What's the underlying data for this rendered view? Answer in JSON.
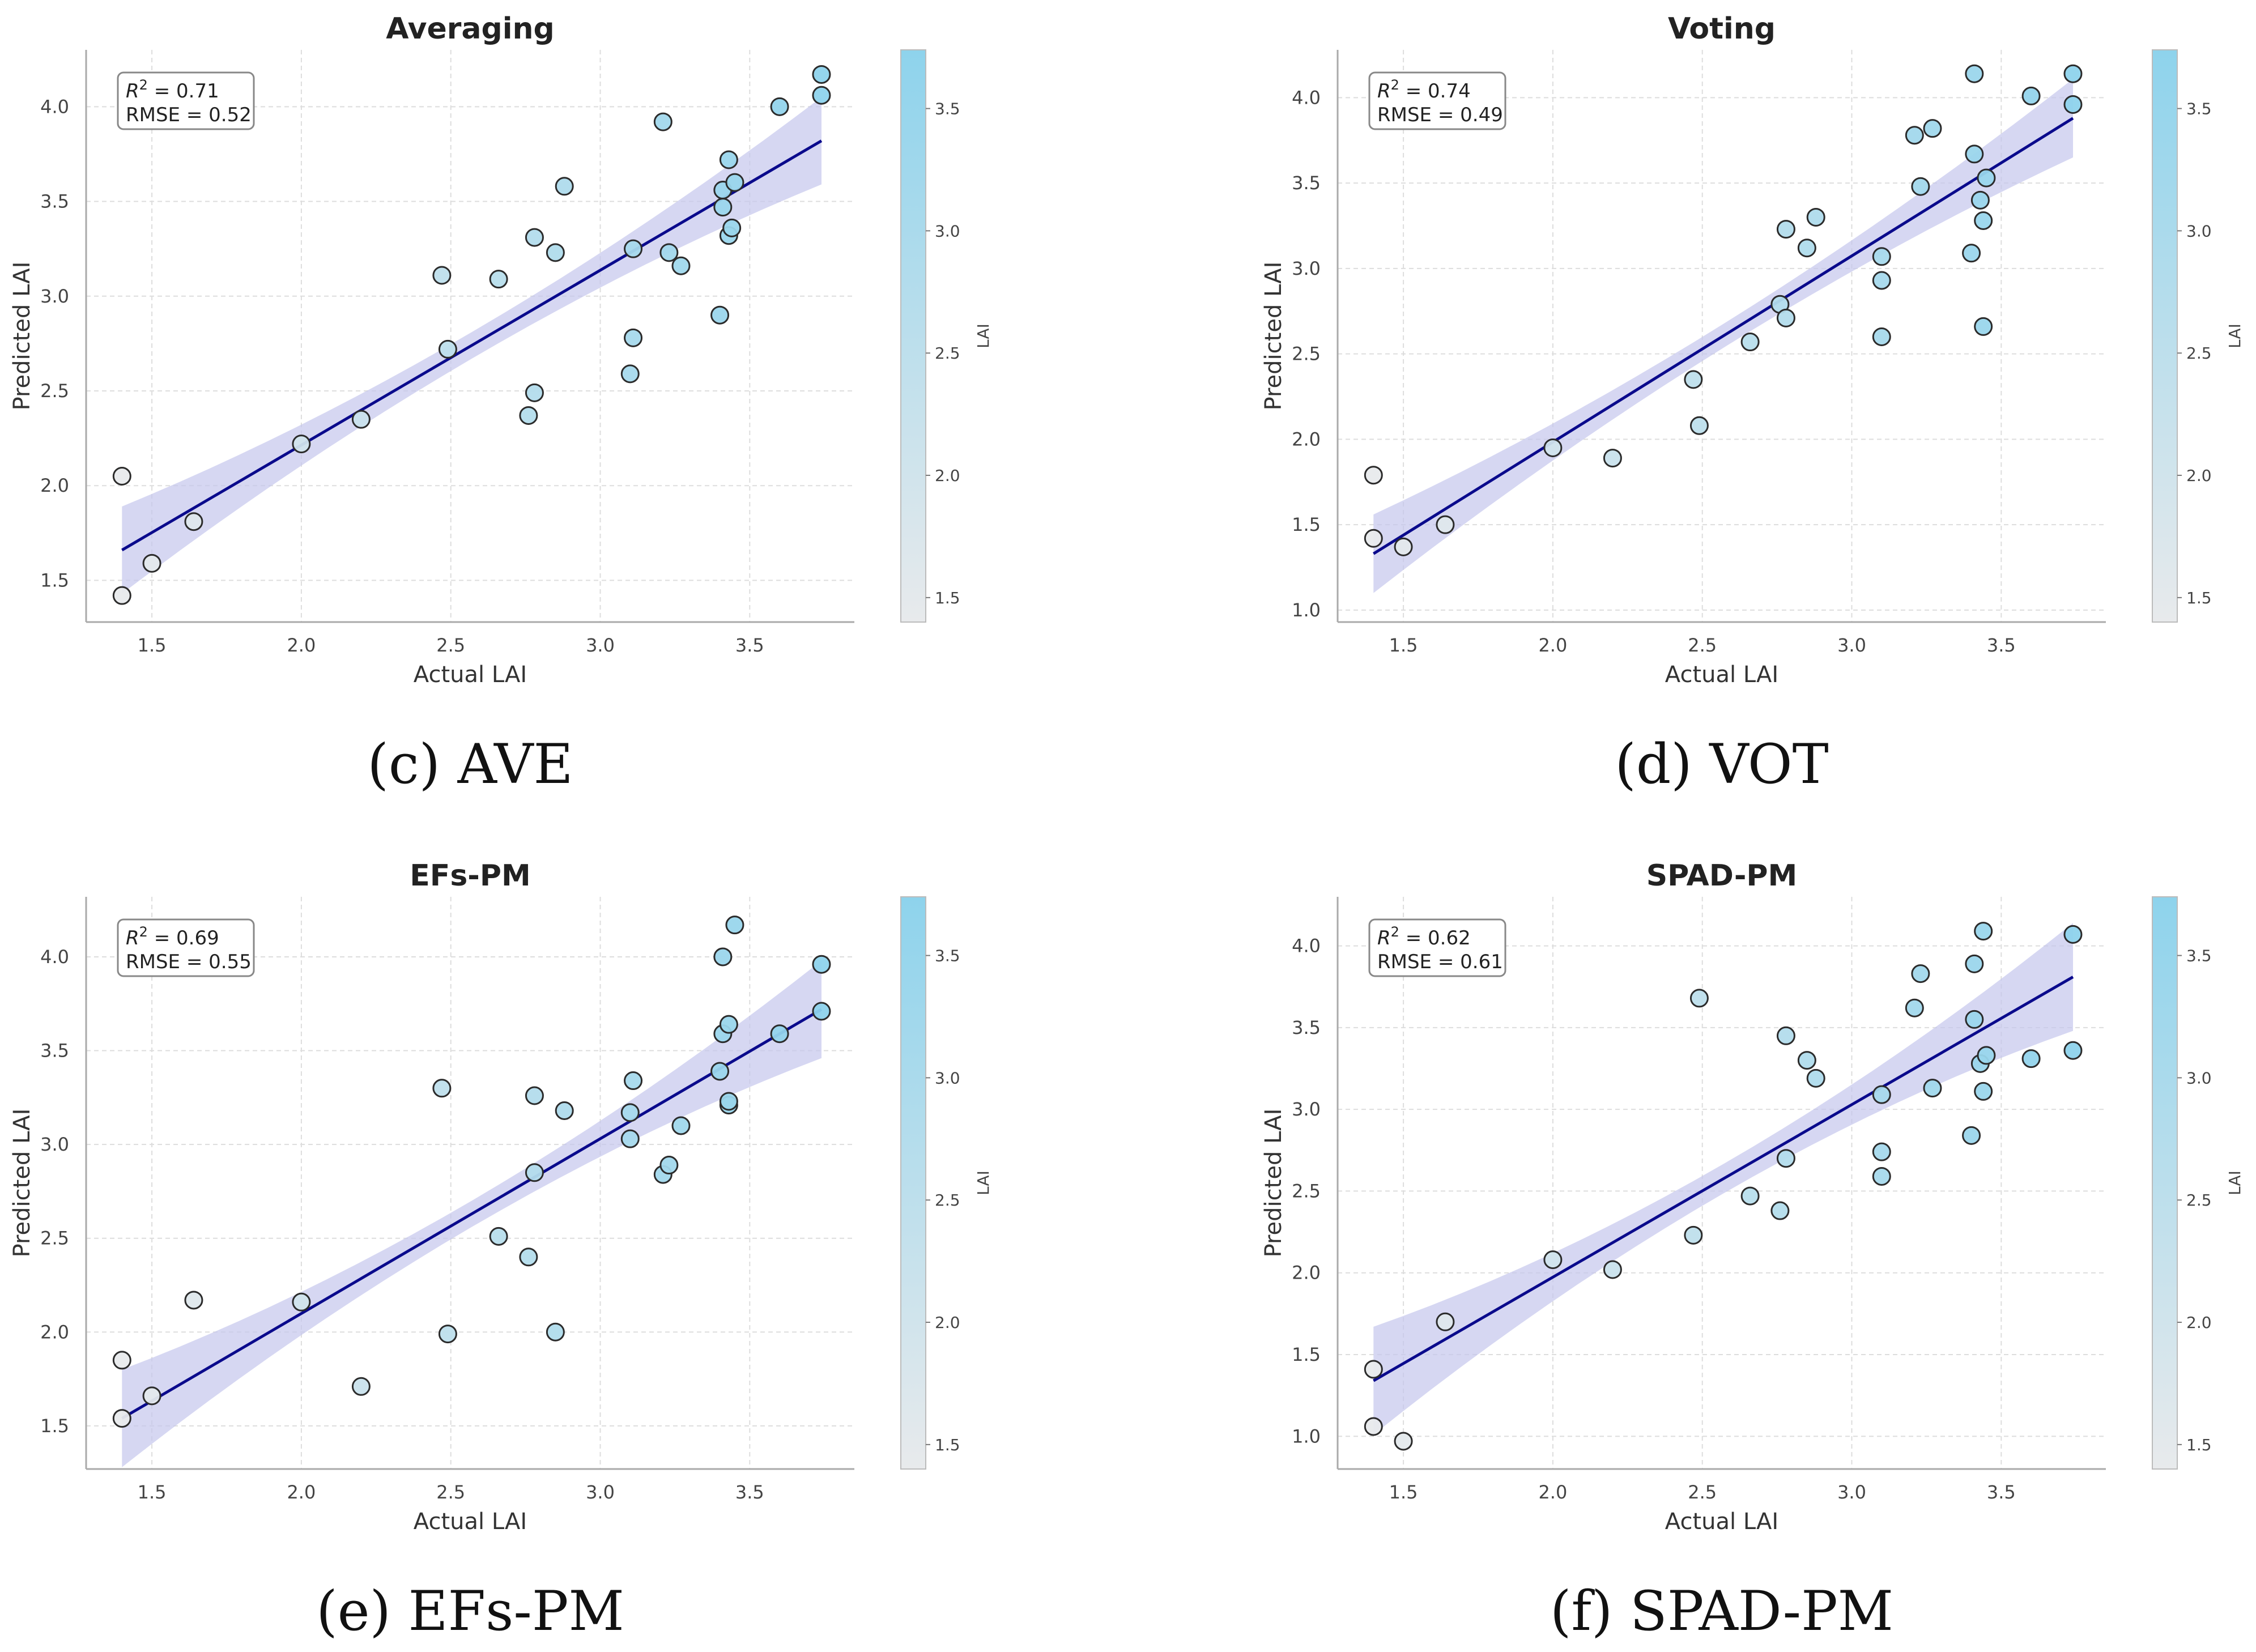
{
  "colorbar": {
    "label": "LAI",
    "ticks": [
      "1.5",
      "2.0",
      "2.5",
      "3.0",
      "3.5"
    ],
    "low_color": "#e8eaec",
    "high_color": "#8ed3ec"
  },
  "colors": {
    "line": "#0a0a8c",
    "band": "#c4c6ec",
    "point_edge": "#2b2b2b",
    "grid": "#dddddd",
    "axis": "#aaaaaa"
  },
  "chart_data": [
    {
      "type": "scatter",
      "title": "Averaging",
      "caption": "(c) AVE",
      "xlabel": "Actual LAI",
      "ylabel": "Predicted LAI",
      "xlim": [
        1.28,
        3.85
      ],
      "ylim": [
        1.28,
        4.3
      ],
      "xticks": [
        "1.5",
        "2.0",
        "2.5",
        "3.0",
        "3.5"
      ],
      "yticks": [
        "1.5",
        "2.0",
        "2.5",
        "3.0",
        "3.5",
        "4.0"
      ],
      "r2_label": "R",
      "r2_value": " = 0.71",
      "rmse": "RMSE = 0.52",
      "fit": {
        "x1": 1.4,
        "y1": 1.66,
        "x2": 3.74,
        "y2": 3.82,
        "band_end": 0.23,
        "band_mid": 0.07
      },
      "points": [
        [
          1.4,
          1.42
        ],
        [
          1.4,
          2.05
        ],
        [
          1.5,
          1.59
        ],
        [
          1.64,
          1.81
        ],
        [
          2.0,
          2.22
        ],
        [
          2.2,
          2.35
        ],
        [
          2.47,
          3.11
        ],
        [
          2.49,
          2.72
        ],
        [
          2.66,
          3.09
        ],
        [
          2.76,
          2.37
        ],
        [
          2.78,
          2.49
        ],
        [
          2.78,
          3.31
        ],
        [
          2.85,
          3.23
        ],
        [
          2.88,
          3.58
        ],
        [
          3.1,
          2.59
        ],
        [
          3.11,
          2.78
        ],
        [
          3.11,
          3.25
        ],
        [
          3.21,
          3.92
        ],
        [
          3.23,
          3.23
        ],
        [
          3.27,
          3.16
        ],
        [
          3.4,
          2.9
        ],
        [
          3.41,
          3.47
        ],
        [
          3.41,
          3.56
        ],
        [
          3.43,
          3.32
        ],
        [
          3.44,
          3.36
        ],
        [
          3.43,
          3.72
        ],
        [
          3.45,
          3.6
        ],
        [
          3.6,
          4.0
        ],
        [
          3.74,
          4.06
        ],
        [
          3.74,
          4.17
        ]
      ]
    },
    {
      "type": "scatter",
      "title": "Voting",
      "caption": "(d) VOT",
      "xlabel": "Actual LAI",
      "ylabel": "Predicted LAI",
      "xlim": [
        1.28,
        3.85
      ],
      "ylim": [
        0.93,
        4.28
      ],
      "xticks": [
        "1.5",
        "2.0",
        "2.5",
        "3.0",
        "3.5"
      ],
      "yticks": [
        "1.0",
        "1.5",
        "2.0",
        "2.5",
        "3.0",
        "3.5",
        "4.0"
      ],
      "r2_label": "R",
      "r2_value": " = 0.74",
      "rmse": "RMSE = 0.49",
      "fit": {
        "x1": 1.4,
        "y1": 1.33,
        "x2": 3.74,
        "y2": 3.88,
        "band_end": 0.23,
        "band_mid": 0.07
      },
      "points": [
        [
          1.4,
          1.42
        ],
        [
          1.4,
          1.79
        ],
        [
          1.5,
          1.37
        ],
        [
          1.64,
          1.5
        ],
        [
          2.0,
          1.95
        ],
        [
          2.2,
          1.89
        ],
        [
          2.47,
          2.35
        ],
        [
          2.49,
          2.08
        ],
        [
          2.66,
          2.57
        ],
        [
          2.76,
          2.79
        ],
        [
          2.78,
          2.71
        ],
        [
          2.78,
          3.23
        ],
        [
          2.85,
          3.12
        ],
        [
          2.88,
          3.3
        ],
        [
          3.1,
          2.6
        ],
        [
          3.1,
          2.93
        ],
        [
          3.1,
          3.07
        ],
        [
          3.21,
          3.78
        ],
        [
          3.23,
          3.48
        ],
        [
          3.27,
          3.82
        ],
        [
          3.4,
          3.09
        ],
        [
          3.41,
          3.67
        ],
        [
          3.41,
          4.14
        ],
        [
          3.43,
          3.4
        ],
        [
          3.44,
          3.28
        ],
        [
          3.44,
          2.66
        ],
        [
          3.45,
          3.53
        ],
        [
          3.6,
          4.01
        ],
        [
          3.74,
          3.96
        ],
        [
          3.74,
          4.14
        ]
      ]
    },
    {
      "type": "scatter",
      "title": "EFs-PM",
      "caption": "(e) EFs-PM",
      "xlabel": "Actual LAI",
      "ylabel": "Predicted LAI",
      "xlim": [
        1.28,
        3.85
      ],
      "ylim": [
        1.27,
        4.32
      ],
      "xticks": [
        "1.5",
        "2.0",
        "2.5",
        "3.0",
        "3.5"
      ],
      "yticks": [
        "1.5",
        "2.0",
        "2.5",
        "3.0",
        "3.5",
        "4.0"
      ],
      "r2_label": "R",
      "r2_value": " = 0.69",
      "rmse": "RMSE = 0.55",
      "fit": {
        "x1": 1.4,
        "y1": 1.54,
        "x2": 3.74,
        "y2": 3.72,
        "band_end": 0.26,
        "band_mid": 0.07
      },
      "points": [
        [
          1.4,
          1.54
        ],
        [
          1.4,
          1.85
        ],
        [
          1.5,
          1.66
        ],
        [
          1.64,
          2.17
        ],
        [
          2.0,
          2.16
        ],
        [
          2.2,
          1.71
        ],
        [
          2.47,
          3.3
        ],
        [
          2.49,
          1.99
        ],
        [
          2.66,
          2.51
        ],
        [
          2.76,
          2.4
        ],
        [
          2.78,
          2.85
        ],
        [
          2.78,
          3.26
        ],
        [
          2.85,
          2.0
        ],
        [
          2.88,
          3.18
        ],
        [
          3.1,
          3.03
        ],
        [
          3.1,
          3.17
        ],
        [
          3.11,
          3.34
        ],
        [
          3.21,
          2.84
        ],
        [
          3.23,
          2.89
        ],
        [
          3.27,
          3.1
        ],
        [
          3.4,
          3.39
        ],
        [
          3.41,
          3.59
        ],
        [
          3.41,
          4.0
        ],
        [
          3.43,
          3.21
        ],
        [
          3.43,
          3.23
        ],
        [
          3.43,
          3.64
        ],
        [
          3.45,
          4.17
        ],
        [
          3.6,
          3.59
        ],
        [
          3.74,
          3.71
        ],
        [
          3.74,
          3.96
        ]
      ]
    },
    {
      "type": "scatter",
      "title": "SPAD-PM",
      "caption": "(f) SPAD-PM",
      "xlabel": "Actual LAI",
      "ylabel": "Predicted LAI",
      "xlim": [
        1.28,
        3.85
      ],
      "ylim": [
        0.8,
        4.3
      ],
      "xticks": [
        "1.5",
        "2.0",
        "2.5",
        "3.0",
        "3.5"
      ],
      "yticks": [
        "1.0",
        "1.5",
        "2.0",
        "2.5",
        "3.0",
        "3.5",
        "4.0"
      ],
      "r2_label": "R",
      "r2_value": " = 0.62",
      "rmse": "RMSE = 0.61",
      "fit": {
        "x1": 1.4,
        "y1": 1.34,
        "x2": 3.74,
        "y2": 3.81,
        "band_end": 0.33,
        "band_mid": 0.09
      },
      "points": [
        [
          1.4,
          1.06
        ],
        [
          1.4,
          1.41
        ],
        [
          1.5,
          0.97
        ],
        [
          1.64,
          1.7
        ],
        [
          2.0,
          2.08
        ],
        [
          2.2,
          2.02
        ],
        [
          2.47,
          2.23
        ],
        [
          2.49,
          3.68
        ],
        [
          2.66,
          2.47
        ],
        [
          2.76,
          2.38
        ],
        [
          2.78,
          2.7
        ],
        [
          2.78,
          3.45
        ],
        [
          2.85,
          3.3
        ],
        [
          2.88,
          3.19
        ],
        [
          3.1,
          2.59
        ],
        [
          3.1,
          2.74
        ],
        [
          3.1,
          3.09
        ],
        [
          3.21,
          3.62
        ],
        [
          3.23,
          3.83
        ],
        [
          3.27,
          3.13
        ],
        [
          3.4,
          2.84
        ],
        [
          3.41,
          3.55
        ],
        [
          3.41,
          3.89
        ],
        [
          3.43,
          3.28
        ],
        [
          3.44,
          3.11
        ],
        [
          3.44,
          4.09
        ],
        [
          3.45,
          3.33
        ],
        [
          3.6,
          3.31
        ],
        [
          3.74,
          3.36
        ],
        [
          3.74,
          4.07
        ]
      ]
    }
  ]
}
